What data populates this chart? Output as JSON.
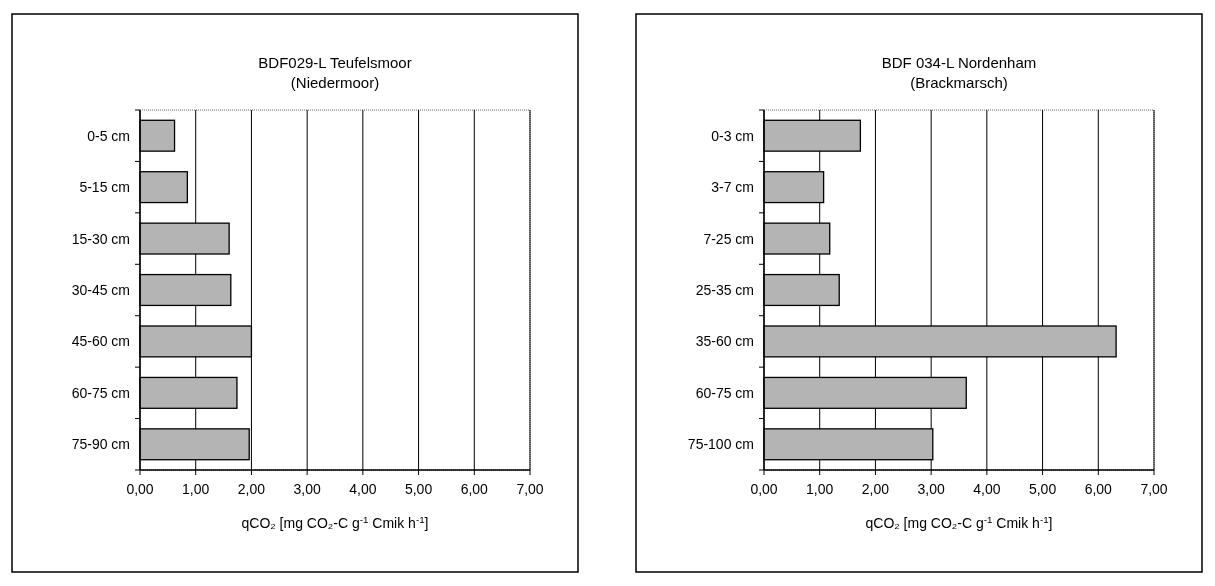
{
  "chart_data": [
    {
      "type": "bar",
      "orientation": "horizontal",
      "title": "BDF029-L Teufelsmoor",
      "subtitle": "(Niedermoor)",
      "xlabel": "qCO₂ [mg CO₂-C g$^{-1}$ Cmik h$^{-1}$]",
      "categories": [
        "0-5 cm",
        "5-15 cm",
        "15-30 cm",
        "30-45 cm",
        "45-60 cm",
        "60-75 cm",
        "75-90 cm"
      ],
      "values": [
        0.62,
        0.85,
        1.6,
        1.63,
        2.0,
        1.74,
        1.96
      ],
      "color": "#b4b4b4",
      "xlim": [
        0,
        7
      ],
      "xticks": [
        {
          "value": 0,
          "label": "0,00"
        },
        {
          "value": 1,
          "label": "1,00"
        },
        {
          "value": 2,
          "label": "2,00"
        },
        {
          "value": 3,
          "label": "3,00"
        },
        {
          "value": 4,
          "label": "4,00"
        },
        {
          "value": 5,
          "label": "5,00"
        },
        {
          "value": 6,
          "label": "6,00"
        },
        {
          "value": 7,
          "label": "7,00"
        }
      ],
      "grid": "x"
    },
    {
      "type": "bar",
      "orientation": "horizontal",
      "title": "BDF 034-L Nordenham",
      "subtitle": "(Brackmarsch)",
      "xlabel": "qCO₂ [mg CO₂-C g$^{-1}$ Cmik h$^{-1}$]",
      "categories": [
        "0-3 cm",
        "3-7 cm",
        "7-25 cm",
        "25-35 cm",
        "35-60 cm",
        "60-75 cm",
        "75-100 cm"
      ],
      "values": [
        1.73,
        1.07,
        1.18,
        1.35,
        6.32,
        3.63,
        3.03
      ],
      "color": "#b4b4b4",
      "xlim": [
        0,
        7
      ],
      "xticks": [
        {
          "value": 0,
          "label": "0,00"
        },
        {
          "value": 1,
          "label": "1,00"
        },
        {
          "value": 2,
          "label": "2,00"
        },
        {
          "value": 3,
          "label": "3,00"
        },
        {
          "value": 4,
          "label": "4,00"
        },
        {
          "value": 5,
          "label": "5,00"
        },
        {
          "value": 6,
          "label": "6,00"
        },
        {
          "value": 7,
          "label": "7,00"
        }
      ],
      "grid": "x"
    }
  ]
}
